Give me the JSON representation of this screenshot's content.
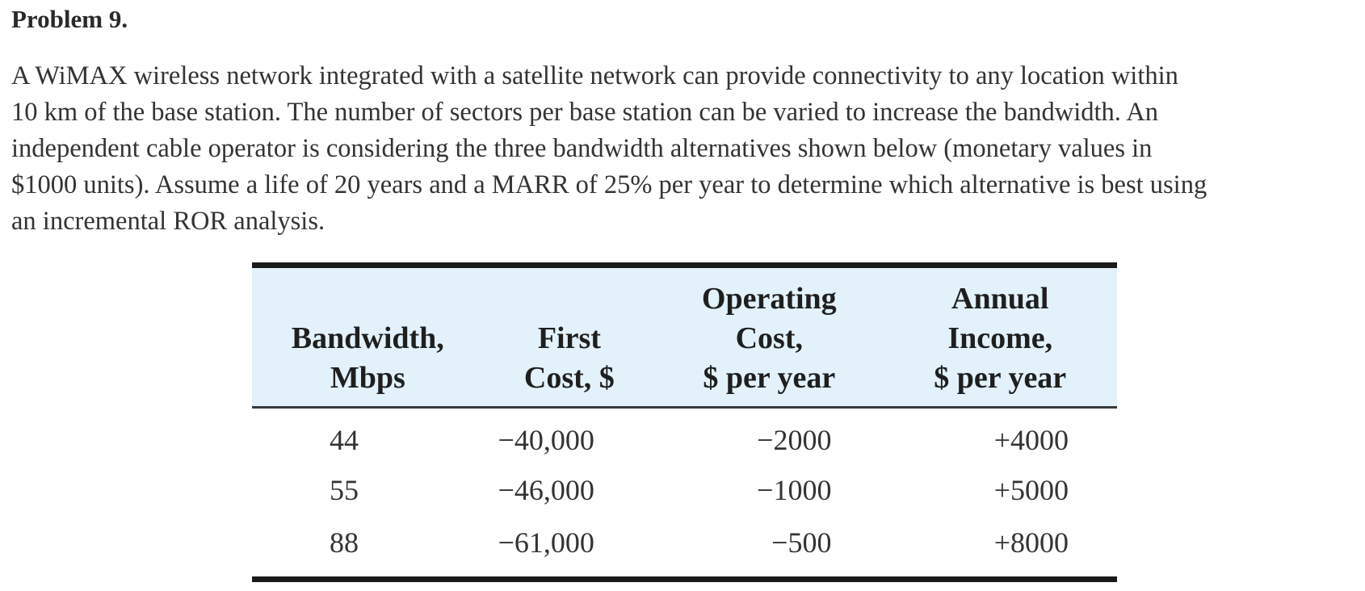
{
  "problem": {
    "title": "Problem 9.",
    "paragraph_lines": [
      "A WiMAX wireless network integrated with a satellite network can provide connectivity to any location within",
      "10 km of the base station. The number of sectors per base station can be varied to increase the bandwidth. An",
      "independent cable operator is considering the three bandwidth alternatives shown below (monetary values in",
      "$1000 units). Assume a life of 20 years and a MARR of 25% per year to determine which alternative is best using",
      "an incremental ROR analysis."
    ]
  },
  "table": {
    "headers": [
      {
        "lines": [
          "Bandwidth,",
          "Mbps"
        ]
      },
      {
        "lines": [
          "First",
          "Cost, $"
        ]
      },
      {
        "lines": [
          "Operating",
          "Cost,",
          "$ per year"
        ]
      },
      {
        "lines": [
          "Annual",
          "Income,",
          "$ per year"
        ]
      }
    ],
    "rows": [
      {
        "bandwidth": "44",
        "first_cost": "−40,000",
        "operating_cost": "−2000",
        "annual_income": "+4000"
      },
      {
        "bandwidth": "55",
        "first_cost": "−46,000",
        "operating_cost": "−1000",
        "annual_income": "+5000"
      },
      {
        "bandwidth": "88",
        "first_cost": "−61,000",
        "operating_cost": "−500",
        "annual_income": "+8000"
      }
    ],
    "colors": {
      "header_background": "#e2f1fa",
      "rule_color": "#1a1a1a"
    }
  }
}
